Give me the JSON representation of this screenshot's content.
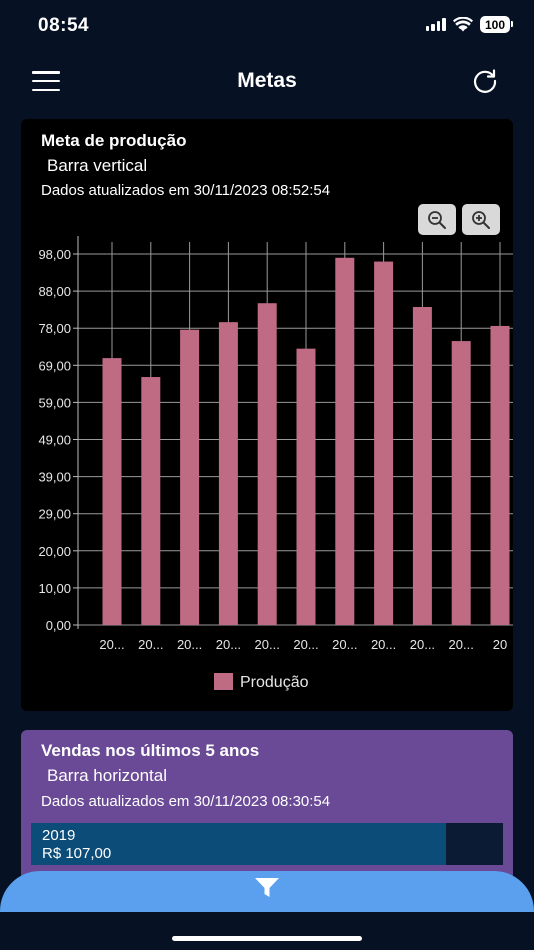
{
  "status_bar": {
    "time": "08:54",
    "battery": "100"
  },
  "header": {
    "title": "Metas"
  },
  "production_card": {
    "title": "Meta de produção",
    "subtitle": "Barra vertical",
    "updated": "Dados atualizados em 30/11/2023 08:52:54"
  },
  "chart_data": {
    "type": "bar",
    "categories": [
      "20...",
      "20...",
      "20...",
      "20...",
      "20...",
      "20...",
      "20...",
      "20...",
      "20...",
      "20...",
      "20"
    ],
    "series": [
      {
        "name": "Produção",
        "values": [
          70.5,
          65.5,
          78,
          80,
          85,
          73,
          97,
          96,
          84,
          75,
          79
        ],
        "color": "#bf6b84"
      }
    ],
    "y_ticks": [
      "0,00",
      "10,00",
      "20,00",
      "29,00",
      "39,00",
      "49,00",
      "59,00",
      "69,00",
      "78,00",
      "88,00",
      "98,00"
    ],
    "ylim": [
      0,
      98
    ],
    "grid": true,
    "legend": "bottom-center"
  },
  "sales_card": {
    "title": "Vendas nos últimos 5 anos",
    "subtitle": "Barra horizontal",
    "updated": "Dados atualizados em 30/11/2023 08:30:54",
    "rows": [
      {
        "year": "2019",
        "value": "R$ 107,00",
        "fill_fraction": 0.88
      }
    ]
  },
  "colors": {
    "background": "#061224",
    "card_purple": "#6a4a96",
    "bar_fill": "#bf6b84",
    "filter_bar": "#5aa0ef",
    "hbar_fill": "#0b4c78"
  },
  "icons": {
    "menu": "menu-icon",
    "refresh": "refresh-icon",
    "zoom_out": "zoom-out-icon",
    "zoom_in": "zoom-in-icon",
    "filter": "filter-icon"
  }
}
